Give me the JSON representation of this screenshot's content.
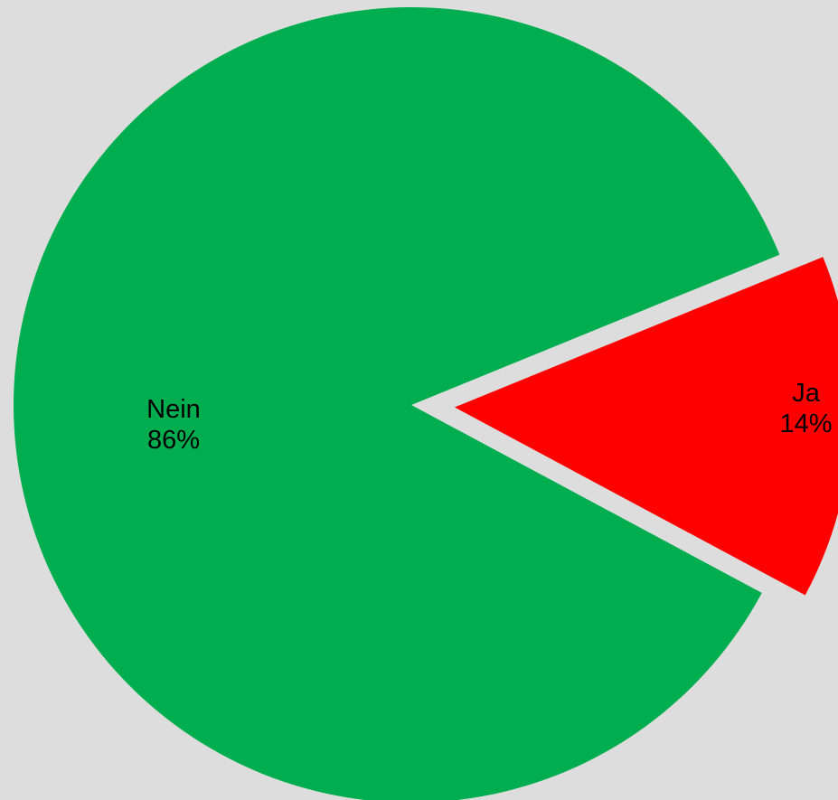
{
  "chart_data": {
    "type": "pie",
    "slices": [
      {
        "label": "Nein",
        "value": 86,
        "percent_label": "86%",
        "color": "#00ae4f",
        "exploded": false
      },
      {
        "label": "Ja",
        "value": 14,
        "percent_label": "14%",
        "color": "#ff0000",
        "exploded": true
      }
    ],
    "background_color": "#dddddd"
  }
}
